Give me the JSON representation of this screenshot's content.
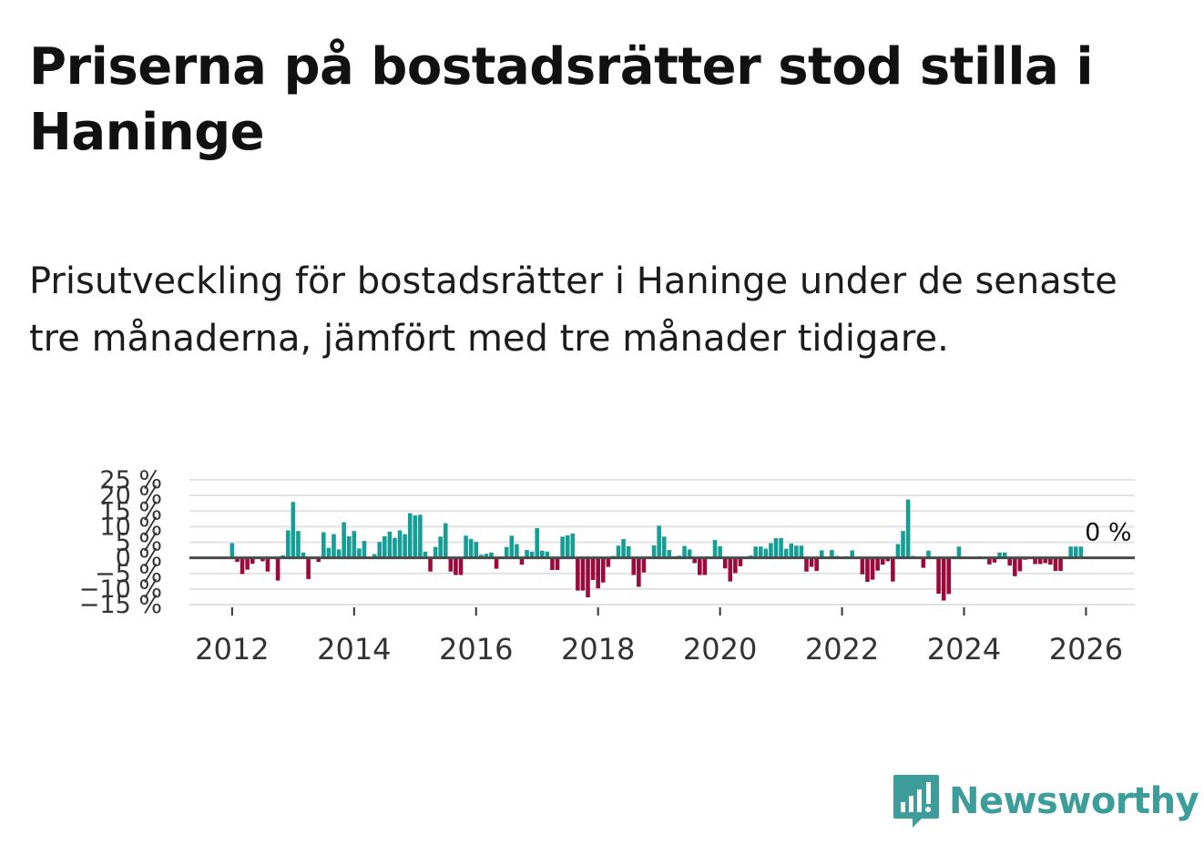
{
  "title": "Priserna på bostadsrätter stod stilla i Haninge",
  "subtitle": "Prisutveckling för bostadsrätter i Haninge under de senaste tre månaderna, jämfört med tre månader tidigare.",
  "logo": {
    "name": "Newsworthy",
    "icon": "newsworthy-logo-icon"
  },
  "colors": {
    "positive": "#149e96",
    "negative": "#9b0a3c",
    "zero_line": "#4a4a4a",
    "grid": "#e2e2e2",
    "brand": "#3d9d9a"
  },
  "chart_data": {
    "type": "bar",
    "title": "",
    "xlabel": "",
    "ylabel": "",
    "ylim": [
      -15,
      25
    ],
    "y_ticks": [
      25,
      20,
      15,
      10,
      5,
      0,
      -5,
      -10,
      -15
    ],
    "y_tick_labels": [
      "25 %",
      "20 %",
      "15 %",
      "10 %",
      "5 %",
      "0 %",
      "−5 %",
      "−10 %",
      "−15 %"
    ],
    "x_range": [
      2011.3,
      2026.8
    ],
    "x_ticks": [
      2012,
      2014,
      2016,
      2018,
      2020,
      2022,
      2024,
      2026
    ],
    "x_tick_labels": [
      "2012",
      "2014",
      "2016",
      "2018",
      "2020",
      "2022",
      "2024",
      "2026"
    ],
    "annotation": "0 %",
    "series": [
      {
        "name": "Prisutveckling",
        "start_year": 2012,
        "start_month": 1,
        "values": [
          4.7,
          -1.3,
          -5.2,
          -3.8,
          -1.9,
          0,
          -1.1,
          -4.4,
          0,
          -7.3,
          0.8,
          8.8,
          17.9,
          8.6,
          1.7,
          -6.8,
          0,
          -1.3,
          8.2,
          3.2,
          7.6,
          2.7,
          11.4,
          6.9,
          8.6,
          3.0,
          5.4,
          0,
          1.2,
          5.1,
          6.9,
          8.4,
          6.4,
          8.8,
          7.6,
          14.3,
          13.6,
          13.8,
          2.0,
          -4.4,
          3.5,
          6.8,
          11.1,
          -4.4,
          -5.5,
          -5.5,
          7.1,
          6.0,
          5.1,
          1.0,
          1.3,
          1.7,
          -3.5,
          0,
          3.5,
          7.1,
          4.4,
          -2.2,
          2.5,
          2.0,
          9.5,
          2.3,
          2.0,
          -3.9,
          -3.9,
          6.8,
          7.2,
          7.8,
          -10.5,
          -10.5,
          -12.7,
          -7.1,
          -9.8,
          -7.9,
          -2.9,
          0.6,
          3.9,
          6.0,
          3.7,
          -5.5,
          -9.3,
          -4.7,
          0.4,
          4.0,
          10.3,
          6.8,
          2.5,
          0.5,
          0.7,
          3.8,
          2.7,
          -1.7,
          -5.5,
          -5.5,
          0.4,
          5.7,
          3.7,
          -3.4,
          -7.6,
          -4.9,
          -2.7,
          0,
          0.7,
          3.6,
          3.6,
          2.9,
          4.7,
          6.3,
          6.3,
          2.9,
          4.6,
          3.9,
          3.9,
          -4.4,
          -2.9,
          -4.2,
          2.4,
          0,
          2.5,
          0.6,
          0.4,
          0.5,
          2.4,
          0,
          -5.3,
          -7.7,
          -7.0,
          -4.1,
          -2.2,
          -1.1,
          -7.6,
          4.4,
          8.6,
          18.7,
          0.6,
          0.3,
          -3.2,
          2.3,
          0,
          -11.5,
          -13.7,
          -11.6,
          0.5,
          3.6,
          0,
          0,
          0,
          0.5,
          0,
          -2.1,
          -1.5,
          1.7,
          1.7,
          -2.5,
          -5.9,
          -4.3,
          -0.6,
          0.3,
          -2.0,
          -2.0,
          -1.7,
          -2.2,
          -4.2,
          -4.2,
          0,
          3.6,
          3.6,
          3.6
        ]
      }
    ]
  }
}
